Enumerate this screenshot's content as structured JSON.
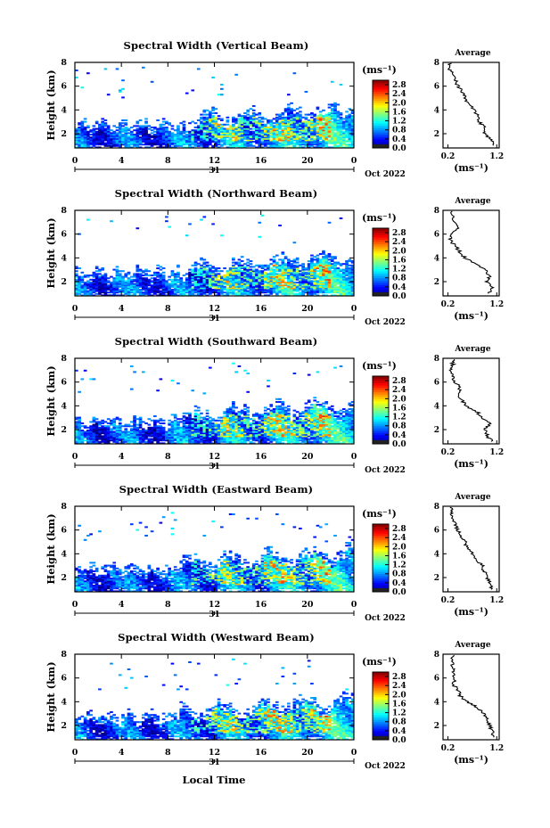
{
  "chart_data": {
    "type": "heatmap",
    "x_axis": {
      "ticks": [
        "0",
        "4",
        "8",
        "12",
        "16",
        "20",
        "0"
      ],
      "tick_hours": [
        0,
        4,
        8,
        12,
        16,
        20,
        24
      ],
      "day_label": "31",
      "month_label": "Oct 2022",
      "xlim": [
        0,
        24
      ],
      "xlabel": "Local Time"
    },
    "y_axis": {
      "label": "Height (km)",
      "ticks": [
        "2",
        "4",
        "6",
        "8"
      ],
      "tick_values": [
        2,
        4,
        6,
        8
      ],
      "ylim": [
        0.8,
        8
      ]
    },
    "colorbar": {
      "unit": "(ms⁻¹)",
      "ticks": [
        "0.0",
        "0.4",
        "0.8",
        "1.2",
        "1.6",
        "2.0",
        "2.4",
        "2.8"
      ],
      "tick_values": [
        0.0,
        0.4,
        0.8,
        1.2,
        1.6,
        2.0,
        2.4,
        2.8
      ],
      "range": [
        0.0,
        3.0
      ]
    },
    "average_panel": {
      "title": "Average",
      "xlabel": "(ms⁻¹)",
      "x_ticks": [
        "0.2",
        "1.2"
      ],
      "xlim": [
        0.1,
        1.25
      ],
      "ylim": [
        0.8,
        8
      ],
      "y_ticks": [
        "2",
        "4",
        "6",
        "8"
      ]
    },
    "panels": [
      {
        "title": "Spectral Width (Vertical Beam)",
        "profile": {
          "height": [
            1.0,
            1.5,
            2.0,
            2.5,
            3.0,
            3.5,
            4.0,
            4.5,
            5.0,
            5.5,
            6.0,
            6.5,
            7.0,
            7.5,
            8.0
          ],
          "value": [
            1.15,
            1.1,
            0.95,
            0.95,
            0.85,
            0.8,
            0.75,
            0.62,
            0.55,
            0.5,
            0.4,
            0.35,
            0.3,
            0.22,
            0.25
          ]
        }
      },
      {
        "title": "Spectral Width (Northward Beam)",
        "profile": {
          "height": [
            1.0,
            1.5,
            2.0,
            2.5,
            3.0,
            3.5,
            4.0,
            4.5,
            5.0,
            5.5,
            6.0,
            6.5,
            7.0,
            7.5,
            8.0
          ],
          "value": [
            1.05,
            1.1,
            1.0,
            1.05,
            0.95,
            0.75,
            0.55,
            0.45,
            0.35,
            0.25,
            0.3,
            0.4,
            0.35,
            0.3,
            0.3
          ]
        }
      },
      {
        "title": "Spectral Width (Southward Beam)",
        "profile": {
          "height": [
            1.0,
            1.5,
            2.0,
            2.5,
            3.0,
            3.5,
            4.0,
            4.5,
            5.0,
            5.5,
            6.0,
            6.5,
            7.0,
            7.5,
            8.0
          ],
          "value": [
            1.1,
            1.0,
            0.95,
            1.05,
            0.9,
            0.8,
            0.55,
            0.5,
            0.4,
            0.45,
            0.35,
            0.3,
            0.25,
            0.3,
            0.3
          ]
        }
      },
      {
        "title": "Spectral Width (Eastward Beam)",
        "profile": {
          "height": [
            1.0,
            1.5,
            2.0,
            2.5,
            3.0,
            3.5,
            4.0,
            4.5,
            5.0,
            5.5,
            6.0,
            6.5,
            7.0,
            7.5,
            8.0
          ],
          "value": [
            1.1,
            1.05,
            1.0,
            0.95,
            0.9,
            0.8,
            0.7,
            0.6,
            0.55,
            0.45,
            0.4,
            0.35,
            0.3,
            0.28,
            0.25
          ]
        }
      },
      {
        "title": "Spectral Width (Westward Beam)",
        "profile": {
          "height": [
            1.0,
            1.5,
            2.0,
            2.5,
            3.0,
            3.5,
            4.0,
            4.5,
            5.0,
            5.5,
            6.0,
            6.5,
            7.0,
            7.5,
            8.0
          ],
          "value": [
            1.15,
            1.1,
            1.05,
            1.0,
            0.95,
            0.8,
            0.6,
            0.45,
            0.4,
            0.3,
            0.35,
            0.3,
            0.3,
            0.3,
            0.3
          ]
        }
      }
    ]
  }
}
